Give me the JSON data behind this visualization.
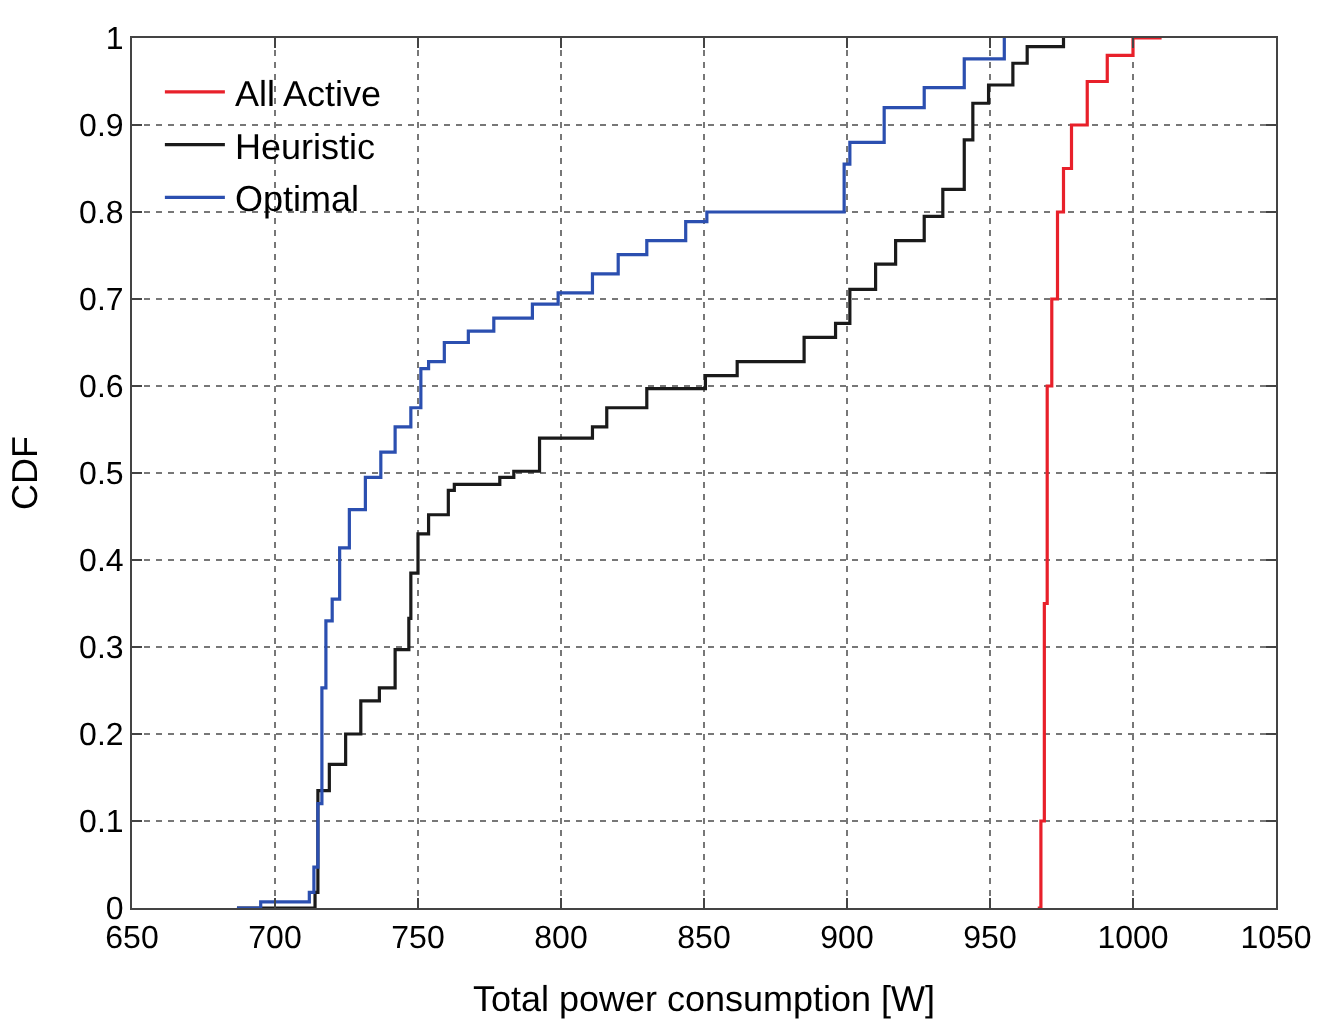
{
  "chart_data": {
    "type": "step",
    "xlabel": "Total power consumption [W]",
    "ylabel": "CDF",
    "xlim": [
      650,
      1050
    ],
    "xticks": [
      650,
      700,
      750,
      800,
      850,
      900,
      950,
      1000,
      1050
    ],
    "ylim": [
      0,
      1
    ],
    "yticks": [
      0,
      0.1,
      0.2,
      0.3,
      0.4,
      0.5,
      0.6,
      0.7,
      0.8,
      0.9,
      1
    ],
    "grid": true,
    "legend": "top left",
    "marker": "none",
    "line_style": "solid",
    "series": [
      {
        "name": "All Active",
        "color": "#e8202a",
        "x": [
          966.7,
          967.8,
          969,
          970,
          971.6,
          973.6,
          975.7,
          978.5,
          984,
          991,
          1000,
          1010
        ],
        "values": [
          0,
          0.1,
          0.35,
          0.6,
          0.7,
          0.8,
          0.85,
          0.9,
          0.95,
          0.98,
          1,
          1
        ]
      },
      {
        "name": "Heuristic",
        "color": "#1a1a1a",
        "x": [
          686.7,
          714,
          715,
          719,
          724.7,
          730,
          736.5,
          742,
          746.8,
          747.5,
          750,
          753.7,
          760.6,
          762.7,
          778.6,
          783.5,
          792.5,
          811,
          816,
          830,
          850.5,
          861.6,
          885,
          896,
          901,
          910,
          917,
          927,
          933.5,
          941,
          944,
          949.5,
          958,
          963,
          975.7
        ],
        "values": [
          0,
          0.018,
          0.135,
          0.165,
          0.2,
          0.238,
          0.253,
          0.297,
          0.333,
          0.385,
          0.43,
          0.452,
          0.48,
          0.487,
          0.495,
          0.502,
          0.54,
          0.553,
          0.575,
          0.597,
          0.612,
          0.628,
          0.656,
          0.672,
          0.711,
          0.74,
          0.767,
          0.795,
          0.826,
          0.883,
          0.925,
          0.946,
          0.971,
          0.99,
          1
        ]
      },
      {
        "name": "Optimal",
        "color": "#2b4fb0",
        "x": [
          686.7,
          695,
          712,
          713.6,
          715,
          716.4,
          717.8,
          720,
          722.6,
          726,
          731.6,
          737,
          742,
          747.5,
          751,
          753.7,
          759.2,
          767.6,
          776.5,
          790,
          799,
          811,
          820,
          830,
          843.6,
          851,
          899,
          901,
          913,
          927,
          941,
          955
        ],
        "values": [
          0,
          0.007,
          0.018,
          0.047,
          0.12,
          0.253,
          0.33,
          0.355,
          0.414,
          0.458,
          0.495,
          0.524,
          0.553,
          0.575,
          0.62,
          0.628,
          0.65,
          0.663,
          0.678,
          0.694,
          0.707,
          0.729,
          0.751,
          0.767,
          0.789,
          0.8,
          0.855,
          0.88,
          0.92,
          0.943,
          0.976,
          1
        ]
      }
    ]
  }
}
